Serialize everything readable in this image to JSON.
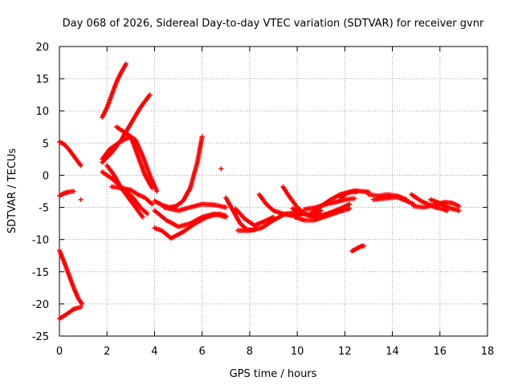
{
  "chart_data": {
    "type": "scatter",
    "title": "Day 068 of 2026, Sidereal Day-to-day VTEC variation (SDTVAR) for receiver gvnr",
    "xlabel": "GPS time / hours",
    "ylabel": "SDTVAR / TECUs",
    "xlim": [
      0,
      18
    ],
    "ylim": [
      -25,
      20
    ],
    "xticks": [
      "0",
      "2",
      "4",
      "6",
      "8",
      "10",
      "12",
      "14",
      "16",
      "18"
    ],
    "yticks": [
      "-25",
      "-20",
      "-15",
      "-10",
      "-5",
      "0",
      "5",
      "10",
      "15",
      "20"
    ],
    "grid": true,
    "marker": "+",
    "color": "#ff0000",
    "series": [
      {
        "name": "s1",
        "points": [
          [
            0.0,
            5.2
          ],
          [
            0.2,
            4.8
          ],
          [
            0.4,
            4.0
          ],
          [
            0.6,
            3.0
          ],
          [
            0.8,
            2.0
          ],
          [
            0.9,
            1.5
          ]
        ]
      },
      {
        "name": "s2",
        "points": [
          [
            0.0,
            -3.2
          ],
          [
            0.2,
            -2.8
          ],
          [
            0.4,
            -2.6
          ],
          [
            0.6,
            -2.5
          ]
        ]
      },
      {
        "name": "s3",
        "points": [
          [
            0.0,
            -11.7
          ],
          [
            0.2,
            -13.5
          ],
          [
            0.4,
            -15.5
          ],
          [
            0.6,
            -17.5
          ],
          [
            0.8,
            -19.2
          ],
          [
            0.95,
            -20.0
          ]
        ]
      },
      {
        "name": "s4",
        "points": [
          [
            0.0,
            -22.3
          ],
          [
            0.3,
            -21.6
          ],
          [
            0.6,
            -20.8
          ],
          [
            0.9,
            -20.5
          ]
        ]
      },
      {
        "name": "s5",
        "points": [
          [
            0.9,
            -3.8
          ]
        ]
      },
      {
        "name": "s6",
        "points": [
          [
            1.8,
            9.0
          ],
          [
            2.0,
            10.5
          ],
          [
            2.2,
            12.5
          ],
          [
            2.4,
            14.5
          ],
          [
            2.6,
            16.0
          ],
          [
            2.8,
            17.3
          ]
        ]
      },
      {
        "name": "s7",
        "points": [
          [
            1.8,
            2.0
          ],
          [
            2.2,
            3.5
          ],
          [
            2.6,
            5.5
          ],
          [
            3.0,
            8.0
          ],
          [
            3.4,
            10.5
          ],
          [
            3.8,
            12.5
          ]
        ]
      },
      {
        "name": "s8",
        "points": [
          [
            1.8,
            2.5
          ],
          [
            2.1,
            4.0
          ],
          [
            2.4,
            4.8
          ],
          [
            2.7,
            5.5
          ],
          [
            3.0,
            6.0
          ],
          [
            3.2,
            4.0
          ],
          [
            3.4,
            2.0
          ],
          [
            3.6,
            0.0
          ],
          [
            3.9,
            -2.0
          ]
        ]
      },
      {
        "name": "s9",
        "points": [
          [
            2.4,
            7.5
          ],
          [
            2.8,
            6.5
          ],
          [
            3.2,
            5.5
          ],
          [
            3.5,
            3.0
          ],
          [
            3.8,
            0.0
          ],
          [
            4.1,
            -2.5
          ]
        ]
      },
      {
        "name": "s10",
        "points": [
          [
            1.8,
            0.5
          ],
          [
            2.2,
            -0.5
          ],
          [
            2.5,
            -1.5
          ],
          [
            2.8,
            -2.5
          ],
          [
            3.1,
            -3.5
          ],
          [
            3.4,
            -5.0
          ],
          [
            3.7,
            -6.0
          ]
        ]
      },
      {
        "name": "s11",
        "points": [
          [
            2.0,
            1.5
          ],
          [
            2.3,
            0.0
          ],
          [
            2.6,
            -2.0
          ],
          [
            2.9,
            -3.5
          ],
          [
            3.2,
            -5.0
          ],
          [
            3.5,
            -6.5
          ]
        ]
      },
      {
        "name": "s12",
        "points": [
          [
            2.2,
            -1.8
          ],
          [
            2.6,
            -2.0
          ],
          [
            3.0,
            -2.3
          ],
          [
            3.3,
            -3.0
          ],
          [
            3.6,
            -3.5
          ],
          [
            3.9,
            -4.5
          ]
        ]
      },
      {
        "name": "s13",
        "points": [
          [
            4.0,
            -4.0
          ],
          [
            4.3,
            -4.6
          ],
          [
            4.6,
            -5.0
          ],
          [
            4.9,
            -4.8
          ],
          [
            5.2,
            -4.0
          ],
          [
            5.5,
            -2.0
          ],
          [
            5.8,
            2.0
          ],
          [
            6.0,
            6.0
          ]
        ]
      },
      {
        "name": "s14",
        "points": [
          [
            4.0,
            -5.5
          ],
          [
            4.5,
            -7.0
          ],
          [
            5.0,
            -8.0
          ],
          [
            5.5,
            -7.5
          ],
          [
            6.0,
            -6.5
          ],
          [
            6.5,
            -6.0
          ],
          [
            7.0,
            -6.5
          ]
        ]
      },
      {
        "name": "s15",
        "points": [
          [
            4.0,
            -8.2
          ],
          [
            4.3,
            -8.6
          ],
          [
            4.7,
            -9.8
          ],
          [
            5.2,
            -8.8
          ],
          [
            5.7,
            -7.5
          ],
          [
            6.2,
            -6.5
          ],
          [
            6.7,
            -6.0
          ],
          [
            7.0,
            -6.3
          ]
        ]
      },
      {
        "name": "s16",
        "points": [
          [
            4.4,
            -5.0
          ],
          [
            5.0,
            -5.5
          ],
          [
            5.5,
            -5.0
          ],
          [
            6.0,
            -4.5
          ],
          [
            6.5,
            -4.6
          ],
          [
            7.0,
            -5.0
          ]
        ]
      },
      {
        "name": "s17",
        "points": [
          [
            6.8,
            1.0
          ]
        ]
      },
      {
        "name": "s18",
        "points": [
          [
            7.0,
            -3.5
          ],
          [
            7.3,
            -5.5
          ],
          [
            7.6,
            -7.5
          ],
          [
            7.9,
            -8.5
          ],
          [
            8.2,
            -8.5
          ]
        ]
      },
      {
        "name": "s19",
        "points": [
          [
            7.4,
            -5.2
          ],
          [
            7.8,
            -6.8
          ],
          [
            8.2,
            -7.8
          ],
          [
            8.6,
            -7.2
          ],
          [
            9.0,
            -6.5
          ]
        ]
      },
      {
        "name": "s20",
        "points": [
          [
            7.5,
            -8.6
          ],
          [
            8.0,
            -8.6
          ],
          [
            8.5,
            -8.2
          ],
          [
            9.0,
            -7.0
          ],
          [
            9.5,
            -6.0
          ],
          [
            10.0,
            -5.8
          ],
          [
            10.5,
            -6.2
          ],
          [
            11.0,
            -5.5
          ]
        ]
      },
      {
        "name": "s21",
        "points": [
          [
            8.4,
            -3.0
          ],
          [
            8.7,
            -4.5
          ],
          [
            9.0,
            -5.5
          ],
          [
            9.4,
            -6.0
          ],
          [
            9.8,
            -6.3
          ],
          [
            10.2,
            -6.0
          ]
        ]
      },
      {
        "name": "s22",
        "points": [
          [
            9.4,
            -1.8
          ],
          [
            9.7,
            -3.5
          ],
          [
            10.0,
            -5.0
          ],
          [
            10.3,
            -6.0
          ],
          [
            10.6,
            -6.3
          ],
          [
            11.0,
            -6.0
          ]
        ]
      },
      {
        "name": "s23",
        "points": [
          [
            9.8,
            -5.2
          ],
          [
            10.2,
            -5.8
          ],
          [
            10.6,
            -6.4
          ],
          [
            11.0,
            -6.3
          ],
          [
            11.4,
            -5.8
          ],
          [
            11.8,
            -5.2
          ],
          [
            12.2,
            -4.5
          ]
        ]
      },
      {
        "name": "s24",
        "points": [
          [
            9.9,
            -6.5
          ],
          [
            10.3,
            -7.0
          ],
          [
            10.7,
            -7.0
          ],
          [
            11.1,
            -6.5
          ],
          [
            11.5,
            -6.0
          ],
          [
            11.9,
            -5.5
          ],
          [
            12.2,
            -5.2
          ]
        ]
      },
      {
        "name": "s25",
        "points": [
          [
            10.3,
            -5.3
          ],
          [
            10.8,
            -5.0
          ],
          [
            11.2,
            -4.5
          ],
          [
            11.6,
            -4.2
          ],
          [
            12.0,
            -3.8
          ],
          [
            12.4,
            -3.6
          ]
        ]
      },
      {
        "name": "s26",
        "points": [
          [
            10.6,
            -5.8
          ],
          [
            11.0,
            -4.8
          ],
          [
            11.4,
            -3.8
          ],
          [
            11.8,
            -3.0
          ],
          [
            12.2,
            -2.6
          ],
          [
            12.5,
            -2.6
          ]
        ]
      },
      {
        "name": "s27",
        "points": [
          [
            11.8,
            -3.5
          ],
          [
            12.1,
            -2.8
          ],
          [
            12.4,
            -2.4
          ],
          [
            12.7,
            -2.5
          ],
          [
            13.0,
            -2.6
          ]
        ]
      },
      {
        "name": "s28",
        "points": [
          [
            12.3,
            -11.8
          ],
          [
            12.5,
            -11.4
          ],
          [
            12.7,
            -11.0
          ],
          [
            12.8,
            -11.0
          ]
        ]
      },
      {
        "name": "s29",
        "points": [
          [
            13.0,
            -3.0
          ],
          [
            13.4,
            -3.2
          ],
          [
            13.8,
            -3.0
          ],
          [
            14.2,
            -3.2
          ],
          [
            14.6,
            -3.8
          ]
        ]
      },
      {
        "name": "s30",
        "points": [
          [
            13.2,
            -3.8
          ],
          [
            13.7,
            -3.6
          ],
          [
            14.2,
            -3.4
          ],
          [
            14.6,
            -4.0
          ],
          [
            14.9,
            -4.5
          ]
        ]
      },
      {
        "name": "s31",
        "points": [
          [
            14.8,
            -3.0
          ],
          [
            15.2,
            -4.0
          ],
          [
            15.5,
            -4.5
          ],
          [
            15.8,
            -5.0
          ],
          [
            16.1,
            -5.2
          ],
          [
            16.3,
            -5.5
          ]
        ]
      },
      {
        "name": "s32",
        "points": [
          [
            14.9,
            -4.8
          ],
          [
            15.3,
            -5.0
          ],
          [
            15.8,
            -4.6
          ],
          [
            16.2,
            -4.2
          ],
          [
            16.5,
            -4.3
          ],
          [
            16.8,
            -4.8
          ]
        ]
      },
      {
        "name": "s33",
        "points": [
          [
            15.6,
            -3.8
          ],
          [
            15.9,
            -4.2
          ],
          [
            16.2,
            -4.8
          ],
          [
            16.5,
            -5.2
          ],
          [
            16.8,
            -5.5
          ]
        ]
      }
    ]
  }
}
